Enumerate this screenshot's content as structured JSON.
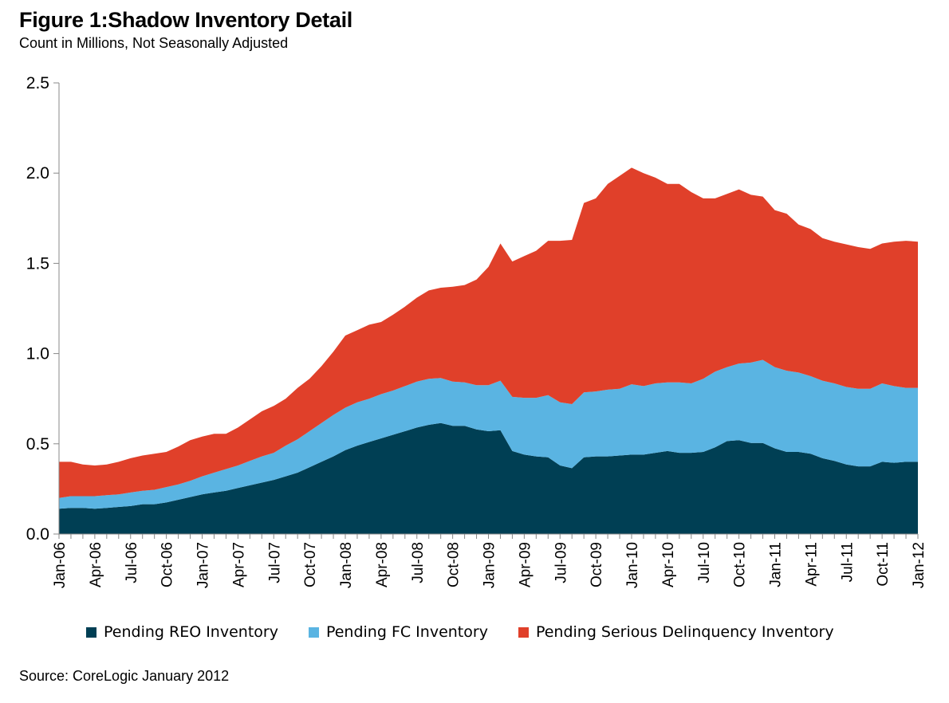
{
  "title": "Figure 1:Shadow Inventory Detail",
  "subtitle": "Count in Millions, Not Seasonally Adjusted",
  "source": "Source: CoreLogic January 2012",
  "chart_data": {
    "type": "area",
    "stacked": true,
    "ylim": [
      0,
      2.5
    ],
    "yticks": [
      "0.0",
      "0.5",
      "1.0",
      "1.5",
      "2.0",
      "2.5"
    ],
    "grid": false,
    "legend_position": "bottom",
    "x": [
      "Jan-06",
      "Feb-06",
      "Mar-06",
      "Apr-06",
      "May-06",
      "Jun-06",
      "Jul-06",
      "Aug-06",
      "Sep-06",
      "Oct-06",
      "Nov-06",
      "Dec-06",
      "Jan-07",
      "Feb-07",
      "Mar-07",
      "Apr-07",
      "May-07",
      "Jun-07",
      "Jul-07",
      "Aug-07",
      "Sep-07",
      "Oct-07",
      "Nov-07",
      "Dec-07",
      "Jan-08",
      "Feb-08",
      "Mar-08",
      "Apr-08",
      "May-08",
      "Jun-08",
      "Jul-08",
      "Aug-08",
      "Sep-08",
      "Oct-08",
      "Nov-08",
      "Dec-08",
      "Jan-09",
      "Feb-09",
      "Mar-09",
      "Apr-09",
      "May-09",
      "Jun-09",
      "Jul-09",
      "Aug-09",
      "Sep-09",
      "Oct-09",
      "Nov-09",
      "Dec-09",
      "Jan-10",
      "Feb-10",
      "Mar-10",
      "Apr-10",
      "May-10",
      "Jun-10",
      "Jul-10",
      "Aug-10",
      "Sep-10",
      "Oct-10",
      "Nov-10",
      "Dec-10",
      "Jan-11",
      "Feb-11",
      "Mar-11",
      "Apr-11",
      "May-11",
      "Jun-11",
      "Jul-11",
      "Aug-11",
      "Sep-11",
      "Oct-11",
      "Nov-11",
      "Dec-11",
      "Jan-12"
    ],
    "xtick_labels": [
      "Jan-06",
      "Apr-06",
      "Jul-06",
      "Oct-06",
      "Jan-07",
      "Apr-07",
      "Jul-07",
      "Oct-07",
      "Jan-08",
      "Apr-08",
      "Jul-08",
      "Oct-08",
      "Jan-09",
      "Apr-09",
      "Jul-09",
      "Oct-09",
      "Jan-10",
      "Apr-10",
      "Jul-10",
      "Oct-10",
      "Jan-11",
      "Apr-11",
      "Jul-11",
      "Oct-11",
      "Jan-12"
    ],
    "series": [
      {
        "name": "Pending REO Inventory",
        "color": "#003f54",
        "values": [
          0.14,
          0.145,
          0.145,
          0.14,
          0.145,
          0.15,
          0.155,
          0.165,
          0.165,
          0.175,
          0.19,
          0.205,
          0.22,
          0.23,
          0.24,
          0.255,
          0.27,
          0.285,
          0.3,
          0.32,
          0.34,
          0.37,
          0.4,
          0.43,
          0.465,
          0.49,
          0.51,
          0.53,
          0.55,
          0.57,
          0.59,
          0.605,
          0.615,
          0.6,
          0.6,
          0.58,
          0.57,
          0.575,
          0.46,
          0.44,
          0.43,
          0.425,
          0.38,
          0.365,
          0.425,
          0.43,
          0.43,
          0.435,
          0.44,
          0.44,
          0.45,
          0.46,
          0.45,
          0.45,
          0.455,
          0.48,
          0.515,
          0.52,
          0.505,
          0.505,
          0.475,
          0.455,
          0.455,
          0.445,
          0.42,
          0.405,
          0.385,
          0.375,
          0.375,
          0.4,
          0.395,
          0.4,
          0.4
        ]
      },
      {
        "name": "Pending FC Inventory",
        "color": "#5ab4e2",
        "values": [
          0.06,
          0.065,
          0.065,
          0.07,
          0.07,
          0.07,
          0.075,
          0.075,
          0.08,
          0.085,
          0.085,
          0.09,
          0.1,
          0.11,
          0.12,
          0.125,
          0.135,
          0.145,
          0.15,
          0.17,
          0.185,
          0.2,
          0.215,
          0.23,
          0.235,
          0.24,
          0.24,
          0.245,
          0.245,
          0.25,
          0.255,
          0.255,
          0.25,
          0.245,
          0.24,
          0.245,
          0.255,
          0.275,
          0.3,
          0.315,
          0.325,
          0.345,
          0.35,
          0.355,
          0.36,
          0.36,
          0.37,
          0.37,
          0.39,
          0.38,
          0.385,
          0.38,
          0.39,
          0.385,
          0.405,
          0.42,
          0.41,
          0.425,
          0.445,
          0.46,
          0.45,
          0.45,
          0.44,
          0.43,
          0.43,
          0.43,
          0.43,
          0.43,
          0.43,
          0.435,
          0.425,
          0.41,
          0.41
        ]
      },
      {
        "name": "Pending Serious Delinquency Inventory",
        "color": "#e0402a",
        "values": [
          0.2,
          0.19,
          0.175,
          0.17,
          0.17,
          0.18,
          0.19,
          0.195,
          0.2,
          0.195,
          0.21,
          0.225,
          0.22,
          0.215,
          0.195,
          0.21,
          0.23,
          0.25,
          0.26,
          0.26,
          0.285,
          0.29,
          0.315,
          0.35,
          0.4,
          0.4,
          0.41,
          0.4,
          0.42,
          0.44,
          0.465,
          0.49,
          0.5,
          0.525,
          0.54,
          0.585,
          0.655,
          0.76,
          0.75,
          0.785,
          0.815,
          0.855,
          0.895,
          0.91,
          1.05,
          1.07,
          1.14,
          1.18,
          1.2,
          1.18,
          1.14,
          1.1,
          1.1,
          1.06,
          1.0,
          0.96,
          0.96,
          0.965,
          0.93,
          0.905,
          0.87,
          0.87,
          0.82,
          0.815,
          0.79,
          0.785,
          0.79,
          0.785,
          0.775,
          0.775,
          0.8,
          0.815,
          0.81
        ]
      }
    ]
  }
}
